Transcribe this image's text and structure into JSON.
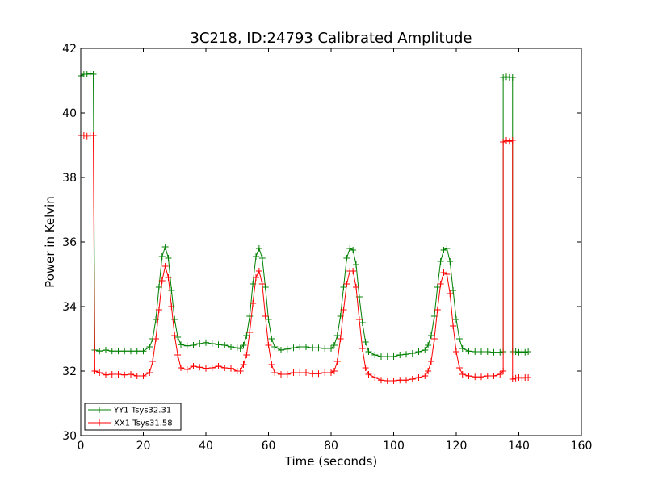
{
  "chart_data": {
    "type": "line",
    "title": "3C218, ID:24793 Calibrated Amplitude",
    "xlabel": "Time (seconds)",
    "ylabel": "Power in Kelvin",
    "xlim": [
      0,
      160
    ],
    "ylim": [
      30,
      42
    ],
    "xticks": [
      0,
      20,
      40,
      60,
      80,
      100,
      120,
      140,
      160
    ],
    "yticks": [
      30,
      32,
      34,
      36,
      38,
      40,
      42
    ],
    "grid": false,
    "legend_position": "lower-left",
    "marker": "+",
    "series": [
      {
        "name": "YY1 Tsys32.31",
        "color": "#008000",
        "points": [
          [
            0,
            41.15
          ],
          [
            1,
            41.2
          ],
          [
            2,
            41.2
          ],
          [
            3,
            41.22
          ],
          [
            4,
            41.2
          ],
          [
            4.5,
            32.65
          ],
          [
            6,
            32.62
          ],
          [
            8,
            32.65
          ],
          [
            10,
            32.62
          ],
          [
            12,
            32.62
          ],
          [
            14,
            32.62
          ],
          [
            16,
            32.62
          ],
          [
            18,
            32.62
          ],
          [
            20,
            32.62
          ],
          [
            22,
            32.75
          ],
          [
            23,
            33.0
          ],
          [
            24,
            33.6
          ],
          [
            25,
            34.6
          ],
          [
            26,
            35.55
          ],
          [
            27,
            35.85
          ],
          [
            28,
            35.5
          ],
          [
            29,
            34.5
          ],
          [
            30,
            33.6
          ],
          [
            31,
            33.05
          ],
          [
            32,
            32.82
          ],
          [
            34,
            32.78
          ],
          [
            36,
            32.8
          ],
          [
            38,
            32.85
          ],
          [
            40,
            32.88
          ],
          [
            42,
            32.85
          ],
          [
            44,
            32.82
          ],
          [
            46,
            32.8
          ],
          [
            48,
            32.75
          ],
          [
            50,
            32.72
          ],
          [
            51,
            32.7
          ],
          [
            52,
            32.8
          ],
          [
            53,
            33.1
          ],
          [
            54,
            33.7
          ],
          [
            55,
            34.7
          ],
          [
            56,
            35.55
          ],
          [
            57,
            35.8
          ],
          [
            58,
            35.5
          ],
          [
            59,
            34.6
          ],
          [
            60,
            33.6
          ],
          [
            61,
            33.0
          ],
          [
            62,
            32.75
          ],
          [
            64,
            32.65
          ],
          [
            66,
            32.68
          ],
          [
            68,
            32.72
          ],
          [
            70,
            32.75
          ],
          [
            72,
            32.75
          ],
          [
            74,
            32.72
          ],
          [
            76,
            32.72
          ],
          [
            78,
            32.7
          ],
          [
            80,
            32.7
          ],
          [
            81,
            32.8
          ],
          [
            82,
            33.1
          ],
          [
            83,
            33.7
          ],
          [
            84,
            34.6
          ],
          [
            85,
            35.5
          ],
          [
            86,
            35.8
          ],
          [
            87,
            35.75
          ],
          [
            88,
            35.3
          ],
          [
            89,
            34.3
          ],
          [
            90,
            33.5
          ],
          [
            91,
            32.9
          ],
          [
            92,
            32.6
          ],
          [
            94,
            32.5
          ],
          [
            96,
            32.45
          ],
          [
            98,
            32.45
          ],
          [
            100,
            32.45
          ],
          [
            102,
            32.5
          ],
          [
            104,
            32.52
          ],
          [
            106,
            32.55
          ],
          [
            108,
            32.6
          ],
          [
            110,
            32.65
          ],
          [
            111,
            32.8
          ],
          [
            112,
            33.1
          ],
          [
            113,
            33.7
          ],
          [
            114,
            34.6
          ],
          [
            115,
            35.4
          ],
          [
            116,
            35.75
          ],
          [
            117,
            35.8
          ],
          [
            118,
            35.4
          ],
          [
            119,
            34.5
          ],
          [
            120,
            33.6
          ],
          [
            121,
            33.0
          ],
          [
            122,
            32.7
          ],
          [
            124,
            32.62
          ],
          [
            126,
            32.6
          ],
          [
            128,
            32.6
          ],
          [
            130,
            32.6
          ],
          [
            132,
            32.58
          ],
          [
            134,
            32.58
          ],
          [
            135,
            32.6
          ],
          [
            135,
            41.1
          ],
          [
            136,
            41.12
          ],
          [
            137,
            41.1
          ],
          [
            138,
            41.1
          ],
          [
            138,
            32.6
          ],
          [
            139,
            32.6
          ],
          [
            140,
            32.58
          ],
          [
            141,
            32.6
          ],
          [
            142,
            32.58
          ],
          [
            143,
            32.6
          ]
        ]
      },
      {
        "name": "XX1 Tsys31.58",
        "color": "#ff0000",
        "points": [
          [
            0,
            39.3
          ],
          [
            1,
            39.3
          ],
          [
            2,
            39.28
          ],
          [
            3,
            39.3
          ],
          [
            4,
            39.3
          ],
          [
            4.5,
            32.0
          ],
          [
            6,
            31.95
          ],
          [
            8,
            31.88
          ],
          [
            10,
            31.9
          ],
          [
            12,
            31.9
          ],
          [
            14,
            31.88
          ],
          [
            16,
            31.9
          ],
          [
            18,
            31.85
          ],
          [
            20,
            31.85
          ],
          [
            22,
            31.95
          ],
          [
            23,
            32.3
          ],
          [
            24,
            33.0
          ],
          [
            25,
            33.9
          ],
          [
            26,
            34.8
          ],
          [
            27,
            35.25
          ],
          [
            28,
            34.9
          ],
          [
            29,
            34.0
          ],
          [
            30,
            33.1
          ],
          [
            31,
            32.5
          ],
          [
            32,
            32.1
          ],
          [
            34,
            32.05
          ],
          [
            36,
            32.15
          ],
          [
            38,
            32.12
          ],
          [
            40,
            32.08
          ],
          [
            42,
            32.1
          ],
          [
            44,
            32.15
          ],
          [
            46,
            32.1
          ],
          [
            48,
            32.08
          ],
          [
            50,
            32.0
          ],
          [
            51,
            32.0
          ],
          [
            52,
            32.2
          ],
          [
            53,
            32.5
          ],
          [
            54,
            33.2
          ],
          [
            55,
            34.1
          ],
          [
            56,
            34.9
          ],
          [
            57,
            35.1
          ],
          [
            58,
            34.7
          ],
          [
            59,
            33.7
          ],
          [
            60,
            32.8
          ],
          [
            61,
            32.2
          ],
          [
            62,
            31.95
          ],
          [
            64,
            31.9
          ],
          [
            66,
            31.9
          ],
          [
            68,
            31.95
          ],
          [
            70,
            31.95
          ],
          [
            72,
            31.95
          ],
          [
            74,
            31.92
          ],
          [
            76,
            31.92
          ],
          [
            78,
            31.95
          ],
          [
            80,
            31.95
          ],
          [
            81,
            32.0
          ],
          [
            82,
            32.3
          ],
          [
            83,
            33.0
          ],
          [
            84,
            33.9
          ],
          [
            85,
            34.7
          ],
          [
            86,
            35.1
          ],
          [
            87,
            35.1
          ],
          [
            88,
            34.6
          ],
          [
            89,
            33.6
          ],
          [
            90,
            32.7
          ],
          [
            91,
            32.1
          ],
          [
            92,
            31.9
          ],
          [
            94,
            31.8
          ],
          [
            96,
            31.72
          ],
          [
            98,
            31.7
          ],
          [
            100,
            31.7
          ],
          [
            102,
            31.72
          ],
          [
            104,
            31.72
          ],
          [
            106,
            31.75
          ],
          [
            108,
            31.8
          ],
          [
            110,
            31.85
          ],
          [
            111,
            32.0
          ],
          [
            112,
            32.3
          ],
          [
            113,
            33.0
          ],
          [
            114,
            33.9
          ],
          [
            115,
            34.7
          ],
          [
            116,
            35.05
          ],
          [
            117,
            35.0
          ],
          [
            118,
            34.4
          ],
          [
            119,
            33.4
          ],
          [
            120,
            32.6
          ],
          [
            121,
            32.1
          ],
          [
            122,
            31.9
          ],
          [
            124,
            31.85
          ],
          [
            126,
            31.82
          ],
          [
            128,
            31.82
          ],
          [
            130,
            31.85
          ],
          [
            132,
            31.85
          ],
          [
            134,
            31.9
          ],
          [
            135,
            32.0
          ],
          [
            135,
            39.1
          ],
          [
            136,
            39.15
          ],
          [
            137,
            39.12
          ],
          [
            138,
            39.15
          ],
          [
            138,
            31.75
          ],
          [
            139,
            31.78
          ],
          [
            140,
            31.8
          ],
          [
            141,
            31.78
          ],
          [
            142,
            31.8
          ],
          [
            143,
            31.8
          ]
        ]
      }
    ]
  }
}
